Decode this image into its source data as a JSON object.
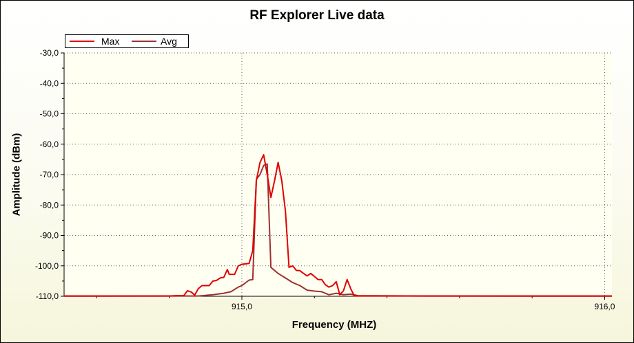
{
  "chart_data": {
    "type": "line",
    "title": "RF Explorer Live data",
    "xlabel": "Frequency (MHZ)",
    "ylabel": "Amplitude (dBm)",
    "xlim": [
      914.51,
      916.02
    ],
    "ylim": [
      -110,
      -30
    ],
    "x_ticks": [
      {
        "value": 915.0,
        "label": "915,0"
      },
      {
        "value": 916.0,
        "label": "916,0"
      }
    ],
    "y_ticks": [
      {
        "value": -30,
        "label": "-30,0"
      },
      {
        "value": -40,
        "label": "-40,0"
      },
      {
        "value": -50,
        "label": "-50,0"
      },
      {
        "value": -60,
        "label": "-60,0"
      },
      {
        "value": -70,
        "label": "-70,0"
      },
      {
        "value": -80,
        "label": "-80,0"
      },
      {
        "value": -90,
        "label": "-90,0"
      },
      {
        "value": -100,
        "label": "-100,0"
      },
      {
        "value": -110,
        "label": "-110,0"
      }
    ],
    "grid": true,
    "legend": "top-left",
    "series": [
      {
        "name": "Max",
        "color": "#e00000",
        "points": [
          [
            914.51,
            -109.9
          ],
          [
            914.8,
            -109.9
          ],
          [
            914.82,
            -109.8
          ],
          [
            914.84,
            -109.8
          ],
          [
            914.85,
            -108.2
          ],
          [
            914.86,
            -108.6
          ],
          [
            914.87,
            -109.6
          ],
          [
            914.88,
            -107.5
          ],
          [
            914.89,
            -106.5
          ],
          [
            914.91,
            -106.5
          ],
          [
            914.92,
            -105.0
          ],
          [
            914.93,
            -104.8
          ],
          [
            914.94,
            -104.0
          ],
          [
            914.95,
            -103.8
          ],
          [
            914.96,
            -101.2
          ],
          [
            914.965,
            -102.8
          ],
          [
            914.98,
            -102.8
          ],
          [
            914.99,
            -100.0
          ],
          [
            915.0,
            -99.5
          ],
          [
            915.02,
            -99.2
          ],
          [
            915.03,
            -95.0
          ],
          [
            915.04,
            -72.0
          ],
          [
            915.05,
            -66.0
          ],
          [
            915.06,
            -63.5
          ],
          [
            915.07,
            -70.0
          ],
          [
            915.08,
            -77.5
          ],
          [
            915.09,
            -72.0
          ],
          [
            915.1,
            -66.0
          ],
          [
            915.11,
            -72.0
          ],
          [
            915.12,
            -82.0
          ],
          [
            915.13,
            -100.5
          ],
          [
            915.14,
            -100.0
          ],
          [
            915.15,
            -101.5
          ],
          [
            915.16,
            -101.6
          ],
          [
            915.17,
            -102.5
          ],
          [
            915.18,
            -103.3
          ],
          [
            915.19,
            -102.5
          ],
          [
            915.2,
            -103.5
          ],
          [
            915.21,
            -104.5
          ],
          [
            915.22,
            -104.5
          ],
          [
            915.23,
            -106.2
          ],
          [
            915.24,
            -107.0
          ],
          [
            915.25,
            -106.5
          ],
          [
            915.26,
            -105.2
          ],
          [
            915.27,
            -109.5
          ],
          [
            915.28,
            -108.2
          ],
          [
            915.29,
            -104.5
          ],
          [
            915.3,
            -107.5
          ],
          [
            915.31,
            -109.9
          ],
          [
            916.02,
            -109.9
          ]
        ]
      },
      {
        "name": "Avg",
        "color": "#a03030",
        "points": [
          [
            914.51,
            -109.95
          ],
          [
            914.88,
            -109.9
          ],
          [
            914.92,
            -109.5
          ],
          [
            914.95,
            -109.0
          ],
          [
            914.97,
            -108.5
          ],
          [
            914.99,
            -107.0
          ],
          [
            915.0,
            -106.5
          ],
          [
            915.02,
            -104.7
          ],
          [
            915.03,
            -104.5
          ],
          [
            915.04,
            -71.5
          ],
          [
            915.05,
            -70.0
          ],
          [
            915.06,
            -67.0
          ],
          [
            915.07,
            -66.5
          ],
          [
            915.08,
            -100.5
          ],
          [
            915.1,
            -102.5
          ],
          [
            915.12,
            -104.0
          ],
          [
            915.14,
            -105.5
          ],
          [
            915.16,
            -106.5
          ],
          [
            915.18,
            -108.0
          ],
          [
            915.2,
            -108.3
          ],
          [
            915.22,
            -108.5
          ],
          [
            915.24,
            -109.5
          ],
          [
            915.26,
            -109.0
          ],
          [
            915.28,
            -109.5
          ],
          [
            915.3,
            -109.3
          ],
          [
            915.32,
            -109.8
          ],
          [
            915.5,
            -109.9
          ],
          [
            916.02,
            -109.95
          ]
        ]
      }
    ]
  }
}
